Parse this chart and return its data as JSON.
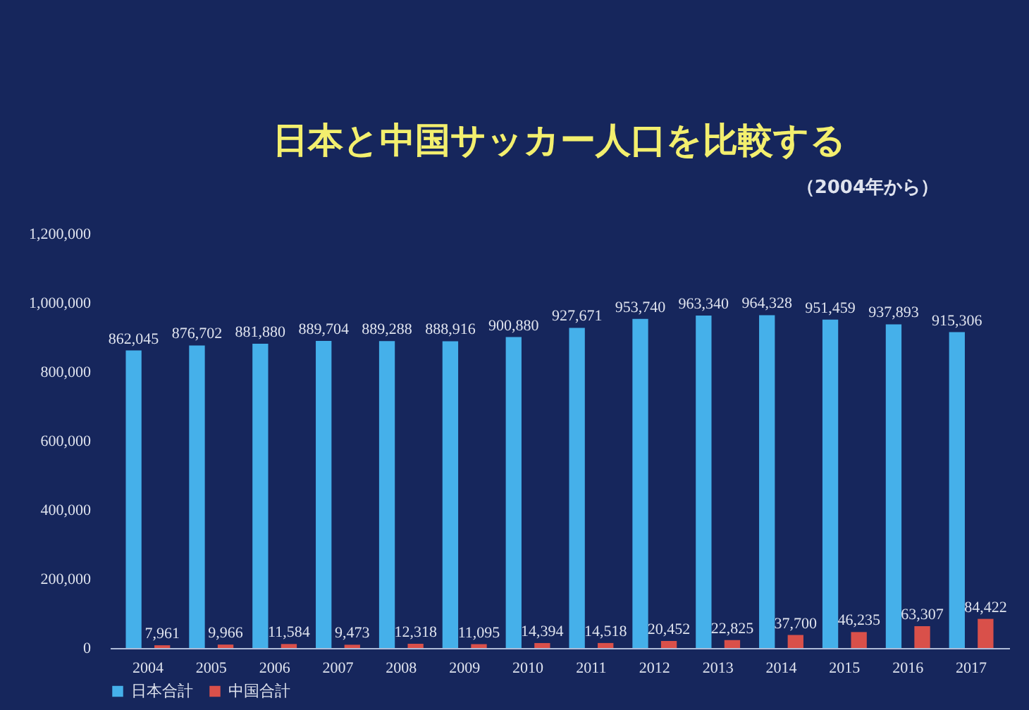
{
  "chart_data": {
    "type": "bar",
    "title": "日本と中国サッカー人口を比較する",
    "subtitle": "（2004年から）",
    "categories": [
      "2004",
      "2005",
      "2006",
      "2007",
      "2008",
      "2009",
      "2010",
      "2011",
      "2012",
      "2013",
      "2014",
      "2015",
      "2016",
      "2017"
    ],
    "series": [
      {
        "name": "日本合計",
        "color": "#45b0ea",
        "values": [
          862045,
          876702,
          881880,
          889704,
          889288,
          888916,
          900880,
          927671,
          953740,
          963340,
          964328,
          951459,
          937893,
          915306
        ],
        "value_labels": [
          "862,045",
          "876,702",
          "881,880",
          "889,704",
          "889,288",
          "888,916",
          "900,880",
          "927,671",
          "953,740",
          "963,340",
          "964,328",
          "951,459",
          "937,893",
          "915,306"
        ]
      },
      {
        "name": "中国合計",
        "color": "#d9504a",
        "values": [
          7961,
          9966,
          11584,
          9473,
          12318,
          11095,
          14394,
          14518,
          20452,
          22825,
          37700,
          46235,
          63307,
          84422
        ],
        "value_labels": [
          "7,961",
          "9,966",
          "11,584",
          "9,473",
          "12,318",
          "11,095",
          "14,394",
          "14,518",
          "20,452",
          "22,825",
          "37,700",
          "46,235",
          "63,307",
          "84,422"
        ]
      }
    ],
    "ylim": [
      0,
      1200000
    ],
    "yticks": [
      0,
      {
        "value": 200000,
        "label": "200,000"
      },
      {
        "value": 400000,
        "label": "400,000"
      },
      {
        "value": 600000,
        "label": "600,000"
      },
      {
        "value": 800000,
        "label": "800,000"
      },
      {
        "value": 1000000,
        "label": "1,000,000"
      },
      {
        "value": 1200000,
        "label": "1,200,000"
      }
    ],
    "legend": "bottom"
  }
}
